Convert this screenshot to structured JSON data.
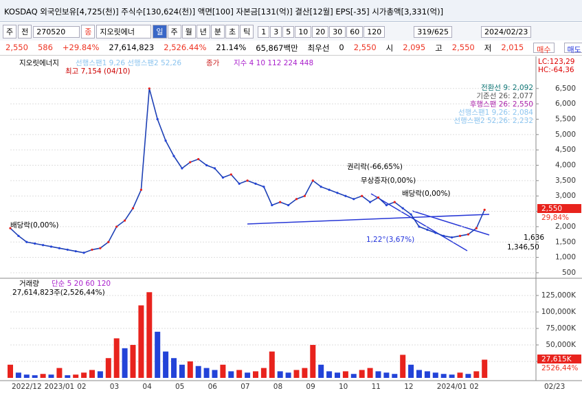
{
  "window": {
    "title": "KOSDAQ 외국인보유[4,725(천)] 주식수[130,624(천)] 액면[100] 자본금[131(억)] 결산[12월] EPS[-35] 시가총액[3,331(억)]"
  },
  "toolbar": {
    "market": "주",
    "prev": "전",
    "code": "270520",
    "badge": "종",
    "name": "지오릿에너",
    "periods": [
      "일",
      "주",
      "월",
      "년",
      "분",
      "초",
      "틱"
    ],
    "intervals": [
      "1",
      "3",
      "5",
      "10",
      "20",
      "30",
      "60",
      "120"
    ],
    "count": "319/625",
    "date": "2024/02/23"
  },
  "quote": {
    "price": "2,550",
    "change": "586",
    "rate": "+29.84%",
    "volume": "27,614,823",
    "vol_rate": "2,526.44%",
    "turnover": "21.14%",
    "amount": "65,867백만",
    "bid_label": "최우선",
    "bid": "0",
    "ask": "2,550",
    "open_label": "시",
    "open": "2,095",
    "high_label": "고",
    "high": "2,550",
    "low_label": "저",
    "low": "2,015",
    "buy": "매수",
    "sell": "매도"
  },
  "chart_data": [
    {
      "type": "line",
      "title": "지오릿에너지",
      "legend_text": "지수 4  10  112  224  448",
      "cloud_text": "선행스팬1 9,26  선행스팬2 52,26",
      "series": [
        {
          "name": "종가",
          "color": "#1c3fb5",
          "values": [
            1950,
            1700,
            1500,
            1450,
            1400,
            1350,
            1300,
            1250,
            1200,
            1150,
            1250,
            1300,
            1500,
            2000,
            2200,
            2600,
            3200,
            6500,
            5500,
            4800,
            4300,
            3900,
            4100,
            4200,
            4000,
            3900,
            3600,
            3700,
            3400,
            3500,
            3400,
            3300,
            2700,
            2800,
            2700,
            2900,
            3000,
            3500,
            3300,
            3200,
            3100,
            3000,
            2900,
            3000,
            2800,
            2950,
            2700,
            2800,
            2600,
            2400,
            2000,
            1900,
            1800,
            1700,
            1650,
            1700,
            1750,
            1950,
            2550
          ]
        }
      ],
      "ylim": [
        320,
        7480
      ],
      "yticks": [
        {
          "value": 500,
          "label": "500"
        },
        {
          "value": 1000,
          "label": "1,000"
        },
        {
          "value": 1500,
          "label": "1,500"
        },
        {
          "value": 2000,
          "label": "2,000"
        },
        {
          "value": 2500,
          "label": "2,500"
        },
        {
          "value": 3000,
          "label": "3,000"
        },
        {
          "value": 3500,
          "label": "3,500"
        },
        {
          "value": 4000,
          "label": "4,000"
        },
        {
          "value": 4500,
          "label": "4,500"
        },
        {
          "value": 5000,
          "label": "5,000"
        },
        {
          "value": 5500,
          "label": "5,500"
        },
        {
          "value": 6000,
          "label": "6,000"
        },
        {
          "value": 6500,
          "label": "6,500"
        }
      ],
      "grid": true,
      "annotations": [
        "최고 7,154 (04/10)",
        "권리락(-66,65%)",
        "무상증자(0,00%)",
        "배당락(0,00%)",
        "배당락(0,00%)",
        "1,22°(3,67%)",
        "1,636",
        "1,346,50"
      ],
      "corner": [
        "LC:123,29",
        "HC:-64,36"
      ],
      "ichimoku": [
        "전환선 9: 2,092",
        "기준선 26: 2,077",
        "후행스팬 26: 2,550",
        "선행스팬1 9,26: 2,084",
        "선행스팬2 52,26: 2,232"
      ],
      "last_tags": [
        "2,550",
        "29,84%"
      ]
    },
    {
      "type": "bar",
      "title": "거래량",
      "legend_text": "단순 5  20  60  120",
      "subtitle": "27,614,823주(2,526,44%)",
      "categories": [
        "2022/12",
        null,
        null,
        null,
        "2023/01",
        null,
        null,
        null,
        "02",
        null,
        null,
        null,
        "03",
        null,
        null,
        null,
        "04",
        null,
        null,
        null,
        "05",
        null,
        null,
        null,
        "06",
        null,
        null,
        null,
        "07",
        null,
        null,
        null,
        "08",
        null,
        null,
        null,
        "09",
        null,
        null,
        null,
        "10",
        null,
        null,
        null,
        "11",
        null,
        null,
        null,
        "12",
        null,
        null,
        null,
        "2024/01",
        null,
        null,
        null,
        "02",
        null,
        null
      ],
      "values": [
        20000,
        8000,
        5000,
        4000,
        6000,
        5000,
        15000,
        4000,
        5000,
        8000,
        12000,
        10000,
        30000,
        60000,
        45000,
        50000,
        110000,
        130000,
        70000,
        40000,
        30000,
        20000,
        25000,
        18000,
        15000,
        12000,
        20000,
        10000,
        12000,
        8000,
        10000,
        15000,
        40000,
        10000,
        8000,
        12000,
        15000,
        50000,
        20000,
        10000,
        8000,
        10000,
        6000,
        12000,
        15000,
        10000,
        8000,
        6000,
        35000,
        20000,
        12000,
        10000,
        8000,
        6000,
        5000,
        8000,
        6000,
        10000,
        27615
      ],
      "up_color": "#e8231d",
      "down_color": "#2343d8",
      "ylim": [
        0,
        148000
      ],
      "yticks": [
        {
          "value": 25000,
          "label": "25,000K"
        },
        {
          "value": 50000,
          "label": "50,000K"
        },
        {
          "value": 75000,
          "label": "75,000K"
        },
        {
          "value": 100000,
          "label": "100,000K"
        },
        {
          "value": 125000,
          "label": "125,000K"
        }
      ],
      "grid": true,
      "last_tags": [
        "27,615K",
        "2526,44%"
      ],
      "end_label": "02/23"
    }
  ]
}
